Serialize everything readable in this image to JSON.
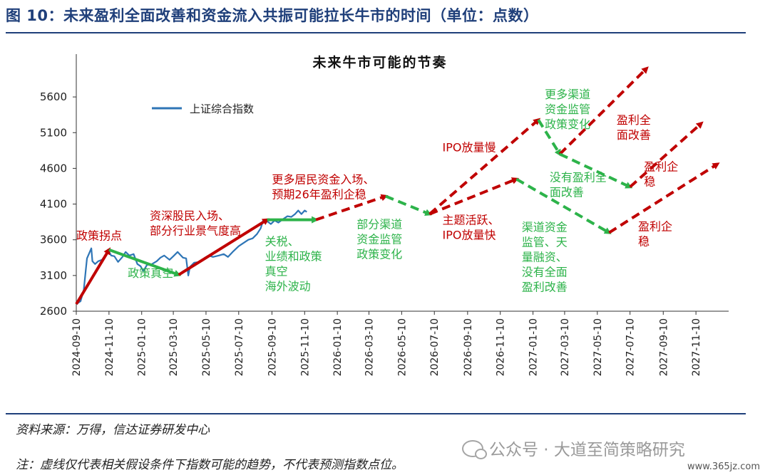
{
  "figure_title": "图 10：未来盈利全面改善和资金流入共振可能拉长牛市的时间（单位：点数）",
  "source": "资料来源：万得，信达证券研发中心",
  "note": "注：虚线仅代表相关假设条件下指数可能的趋势，不代表预测指数点位。",
  "watermark": "公众号 · 大道至简策略研究",
  "site": "www.365jz.com",
  "colors": {
    "series": "#2e75b6",
    "red": "#c00000",
    "green": "#2db34a",
    "title": "#1f3f7a"
  },
  "chart_data": {
    "type": "line",
    "title": "未来牛市可能的节奏",
    "xlabel": "",
    "ylabel": "",
    "ylim": [
      2600,
      6000
    ],
    "yticks": [
      2600,
      3100,
      3600,
      4100,
      4600,
      5100,
      5600
    ],
    "xlim": [
      "2024-09-10",
      "2028-01-10"
    ],
    "xticks": [
      "2024-09-10",
      "2024-11-10",
      "2025-01-10",
      "2025-03-10",
      "2025-05-10",
      "2025-07-10",
      "2025-09-10",
      "2025-11-10",
      "2026-01-10",
      "2026-03-10",
      "2026-05-10",
      "2026-07-10",
      "2026-09-10",
      "2026-11-10",
      "2027-01-10",
      "2027-03-10",
      "2027-05-10",
      "2027-07-10",
      "2027-09-10",
      "2027-11-10"
    ],
    "legend": {
      "label": "上证综合指数",
      "placement": "top-left"
    },
    "grid": false,
    "series": [
      {
        "name": "上证综合指数",
        "style": "solid",
        "points": [
          [
            "2024-09-10",
            2700
          ],
          [
            "2024-09-18",
            2740
          ],
          [
            "2024-09-24",
            2900
          ],
          [
            "2024-09-30",
            3340
          ],
          [
            "2024-10-08",
            3480
          ],
          [
            "2024-10-10",
            3300
          ],
          [
            "2024-10-15",
            3260
          ],
          [
            "2024-10-21",
            3300
          ],
          [
            "2024-10-28",
            3320
          ],
          [
            "2024-11-04",
            3390
          ],
          [
            "2024-11-08",
            3460
          ],
          [
            "2024-11-14",
            3380
          ],
          [
            "2024-11-20",
            3370
          ],
          [
            "2024-11-27",
            3290
          ],
          [
            "2024-12-05",
            3360
          ],
          [
            "2024-12-11",
            3430
          ],
          [
            "2024-12-18",
            3380
          ],
          [
            "2024-12-26",
            3400
          ],
          [
            "2025-01-02",
            3260
          ],
          [
            "2025-01-08",
            3230
          ],
          [
            "2025-01-13",
            3160
          ],
          [
            "2025-01-20",
            3250
          ],
          [
            "2025-01-27",
            3250
          ],
          [
            "2025-02-07",
            3300
          ],
          [
            "2025-02-14",
            3350
          ],
          [
            "2025-02-21",
            3380
          ],
          [
            "2025-03-03",
            3320
          ],
          [
            "2025-03-10",
            3370
          ],
          [
            "2025-03-18",
            3430
          ],
          [
            "2025-03-28",
            3350
          ],
          [
            "2025-04-03",
            3340
          ],
          [
            "2025-04-07",
            3100
          ],
          [
            "2025-04-10",
            3220
          ],
          [
            "2025-04-18",
            3280
          ],
          [
            "2025-04-28",
            3290
          ],
          [
            "2025-05-08",
            3350
          ],
          [
            "2025-05-15",
            3380
          ],
          [
            "2025-05-23",
            3360
          ],
          [
            "2025-06-03",
            3380
          ],
          [
            "2025-06-12",
            3400
          ],
          [
            "2025-06-20",
            3360
          ],
          [
            "2025-06-30",
            3440
          ],
          [
            "2025-07-10",
            3510
          ],
          [
            "2025-07-20",
            3560
          ],
          [
            "2025-07-28",
            3600
          ],
          [
            "2025-08-05",
            3620
          ],
          [
            "2025-08-13",
            3680
          ],
          [
            "2025-08-20",
            3760
          ],
          [
            "2025-08-25",
            3880
          ],
          [
            "2025-09-01",
            3860
          ],
          [
            "2025-09-08",
            3820
          ],
          [
            "2025-09-15",
            3870
          ],
          [
            "2025-09-22",
            3840
          ],
          [
            "2025-09-29",
            3880
          ],
          [
            "2025-10-09",
            3930
          ],
          [
            "2025-10-16",
            3920
          ],
          [
            "2025-10-23",
            3960
          ],
          [
            "2025-10-29",
            4010
          ],
          [
            "2025-11-04",
            3960
          ],
          [
            "2025-11-10",
            4010
          ],
          [
            "2025-11-14",
            3990
          ]
        ]
      },
      {
        "name": "",
        "style": "solid",
        "color": "red",
        "points": [
          [
            "2024-09-10",
            2700
          ],
          [
            "2024-11-10",
            3460
          ]
        ]
      },
      {
        "name": "",
        "style": "solid",
        "color": "green",
        "points": [
          [
            "2024-11-10",
            3460
          ],
          [
            "2025-03-20",
            3110
          ]
        ]
      },
      {
        "name": "",
        "style": "solid",
        "color": "red",
        "points": [
          [
            "2025-03-20",
            3110
          ],
          [
            "2025-09-01",
            3880
          ]
        ]
      },
      {
        "name": "",
        "style": "solid",
        "color": "green",
        "points": [
          [
            "2025-09-01",
            3880
          ],
          [
            "2025-12-01",
            3880
          ]
        ]
      },
      {
        "name": "",
        "style": "dashed",
        "color": "red",
        "points": [
          [
            "2025-12-01",
            3880
          ],
          [
            "2026-04-10",
            4210
          ]
        ]
      },
      {
        "name": "",
        "style": "dashed",
        "color": "green",
        "points": [
          [
            "2026-04-10",
            4210
          ],
          [
            "2026-07-01",
            3960
          ]
        ]
      },
      {
        "name": "",
        "style": "dashed",
        "color": "red",
        "points": [
          [
            "2026-07-01",
            3960
          ],
          [
            "2027-01-20",
            5280
          ]
        ]
      },
      {
        "name": "",
        "style": "dashed",
        "color": "red",
        "points": [
          [
            "2026-07-01",
            3960
          ],
          [
            "2026-12-10",
            4450
          ]
        ]
      },
      {
        "name": "",
        "style": "dashed",
        "color": "green",
        "points": [
          [
            "2027-01-20",
            5280
          ],
          [
            "2027-03-01",
            4800
          ]
        ]
      },
      {
        "name": "",
        "style": "dashed",
        "color": "red",
        "points": [
          [
            "2027-03-01",
            4800
          ],
          [
            "2027-08-10",
            6000
          ]
        ]
      },
      {
        "name": "",
        "style": "dashed",
        "color": "green",
        "points": [
          [
            "2027-03-01",
            4800
          ],
          [
            "2027-07-10",
            4340
          ]
        ]
      },
      {
        "name": "",
        "style": "dashed",
        "color": "red",
        "points": [
          [
            "2027-07-10",
            4340
          ],
          [
            "2027-11-20",
            5230
          ]
        ]
      },
      {
        "name": "",
        "style": "dashed",
        "color": "green",
        "points": [
          [
            "2026-12-10",
            4450
          ],
          [
            "2027-06-01",
            3700
          ]
        ]
      },
      {
        "name": "",
        "style": "dashed",
        "color": "red",
        "points": [
          [
            "2027-06-01",
            3700
          ],
          [
            "2027-12-20",
            4660
          ]
        ]
      }
    ],
    "annotations": [
      {
        "text": "政策拐点",
        "color": "red",
        "lines": [
          "政策拐点"
        ],
        "x": "2024-09-10",
        "y": 3600
      },
      {
        "text": "政策真空",
        "color": "green",
        "lines": [
          "政策真空"
        ],
        "x": "2024-12-15",
        "y": 3080
      },
      {
        "text": "资深股民入场、部分行业景气度高",
        "color": "red",
        "lines": [
          "资深股民入场、",
          "部分行业景气度高"
        ],
        "x": "2025-01-25",
        "y": 3880
      },
      {
        "text": "更多居民资金入场、预期26年盈利企稳",
        "color": "red",
        "lines": [
          "更多居民资金入场、",
          "预期26年盈利企稳"
        ],
        "x": "2025-09-10",
        "y": 4390
      },
      {
        "text": "关税、业绩和政策真空海外波动",
        "color": "green",
        "lines": [
          "关税、",
          "业绩和政策",
          "真空",
          "海外波动"
        ],
        "x": "2025-08-28",
        "y": 3520
      },
      {
        "text": "部分渠道资金监管政策变化",
        "color": "green",
        "lines": [
          "部分渠道",
          "资金监管",
          "政策变化"
        ],
        "x": "2026-02-15",
        "y": 3760
      },
      {
        "text": "IPO放量慢",
        "color": "red",
        "lines": [
          "IPO放量慢"
        ],
        "x": "2026-07-25",
        "y": 4840
      },
      {
        "text": "主题活跃、IPO放量快",
        "color": "red",
        "lines": [
          "主题活跃、",
          "IPO放量快"
        ],
        "x": "2026-07-25",
        "y": 3820
      },
      {
        "text": "更多渠道资金监管政策变化",
        "color": "green",
        "lines": [
          "更多渠道",
          "资金监管",
          "政策变化"
        ],
        "x": "2027-02-01",
        "y": 5580
      },
      {
        "text": "盈利全面改善",
        "color": "red",
        "lines": [
          "盈利全",
          "面改善"
        ],
        "x": "2027-06-15",
        "y": 5220
      },
      {
        "text": "没有盈利全面改善",
        "color": "green",
        "lines": [
          "没有盈利全",
          "面改善"
        ],
        "x": "2027-02-10",
        "y": 4420
      },
      {
        "text": "盈利企稳",
        "color": "red",
        "lines": [
          "盈利企",
          "稳"
        ],
        "x": "2027-08-05",
        "y": 4570
      },
      {
        "text": "渠道资金监管、天量融资、没有全面盈利改善",
        "color": "green",
        "lines": [
          "渠道资金",
          "监管、天",
          "量融资、",
          "没有全面",
          "盈利改善"
        ],
        "x": "2026-12-20",
        "y": 3720
      },
      {
        "text": "盈利企稳",
        "color": "red",
        "lines": [
          "盈利企",
          "稳"
        ],
        "x": "2027-07-25",
        "y": 3730
      }
    ]
  }
}
